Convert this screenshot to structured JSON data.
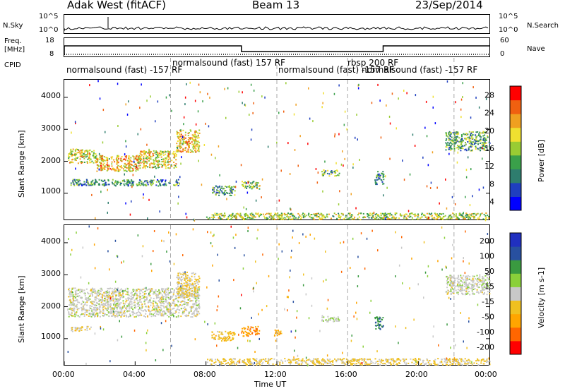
{
  "header": {
    "station": "Adak West (fitACF)",
    "beam": "Beam 13",
    "date": "23/Sep/2014"
  },
  "panels": {
    "nsky": {
      "label": "N.Sky",
      "right_label": "N.Search",
      "top_tick": "10^5",
      "bottom_tick": "10^0",
      "right_top_tick": "10^5",
      "right_bottom_tick": "10^0"
    },
    "freq": {
      "label_line1": "Freq.",
      "label_line2": "[MHz]",
      "right_label": "Nave",
      "ticks_left": [
        "18",
        "8"
      ],
      "ticks_right": [
        "60",
        "0"
      ]
    },
    "cpid": {
      "label": "CPID",
      "modes": [
        "normalsound (fast) -157 RF",
        "normalsound (fast) 157 RF",
        "normalsound (fast) -157 RF",
        "rbsp 200 RF",
        "normalsound (fast) -157 RF"
      ]
    }
  },
  "axes": {
    "x_ticks": [
      "00:00",
      "04:00",
      "08:00",
      "12:00",
      "16:00",
      "20:00",
      "00:00"
    ],
    "x_label": "Time UT",
    "y_label": "Slant Range [km]",
    "y_ticks": [
      "1000",
      "2000",
      "3000",
      "4000"
    ]
  },
  "chart_data": [
    {
      "type": "heatmap",
      "title": "",
      "xlabel": "",
      "ylabel": "Slant Range [km]",
      "xlim": [
        0,
        24
      ],
      "ylim": [
        180,
        4550
      ],
      "colorbar": {
        "label": "Power [dB]",
        "ticks": [
          "28",
          "24",
          "20",
          "16",
          "12",
          "8",
          "4"
        ],
        "range": [
          0,
          30
        ]
      },
      "regions": [
        {
          "t0": 0.2,
          "t1": 1.8,
          "r0": 1950,
          "r1": 2400,
          "value": 18
        },
        {
          "t0": 1.8,
          "t1": 4.2,
          "r0": 1700,
          "r1": 2200,
          "value": 20
        },
        {
          "t0": 4.2,
          "t1": 6.3,
          "r0": 1800,
          "r1": 2350,
          "value": 18
        },
        {
          "t0": 6.3,
          "t1": 7.6,
          "r0": 2300,
          "r1": 3000,
          "value": 20
        },
        {
          "t0": 0.3,
          "t1": 6.5,
          "r0": 1250,
          "r1": 1450,
          "value": 10
        },
        {
          "t0": 8.3,
          "t1": 9.6,
          "r0": 950,
          "r1": 1250,
          "value": 10
        },
        {
          "t0": 10.0,
          "t1": 11.0,
          "r0": 1150,
          "r1": 1400,
          "value": 14
        },
        {
          "t0": 14.5,
          "t1": 15.5,
          "r0": 1550,
          "r1": 1750,
          "value": 12
        },
        {
          "t0": 17.5,
          "t1": 18.0,
          "r0": 1300,
          "r1": 1700,
          "value": 8
        },
        {
          "t0": 21.5,
          "t1": 24.0,
          "r0": 2350,
          "r1": 2950,
          "value": 12
        },
        {
          "t0": 8.0,
          "t1": 24.0,
          "r0": 200,
          "r1": 400,
          "value": 16
        }
      ]
    },
    {
      "type": "heatmap",
      "title": "",
      "xlabel": "Time UT",
      "ylabel": "Slant Range [km]",
      "xlim": [
        0,
        24
      ],
      "ylim": [
        180,
        4550
      ],
      "colorbar": {
        "label": "Velocity [m s-1]",
        "ticks": [
          "200",
          "100",
          "50",
          "15",
          "-15",
          "-50",
          "-100",
          "-200"
        ],
        "range": [
          -250,
          250
        ]
      },
      "regions": [
        {
          "t0": 0.2,
          "t1": 7.6,
          "r0": 1700,
          "r1": 2600,
          "value": 0
        },
        {
          "t0": 6.3,
          "t1": 7.6,
          "r0": 2300,
          "r1": 3100,
          "value": -30
        },
        {
          "t0": 0.3,
          "t1": 1.5,
          "r0": 1250,
          "r1": 1400,
          "value": -20
        },
        {
          "t0": 8.3,
          "t1": 9.6,
          "r0": 950,
          "r1": 1250,
          "value": -60
        },
        {
          "t0": 10.0,
          "t1": 11.0,
          "r0": 1100,
          "r1": 1400,
          "value": -120
        },
        {
          "t0": 11.8,
          "t1": 12.3,
          "r0": 1100,
          "r1": 1300,
          "value": -110
        },
        {
          "t0": 14.5,
          "t1": 15.5,
          "r0": 1550,
          "r1": 1750,
          "value": 20
        },
        {
          "t0": 17.5,
          "t1": 18.0,
          "r0": 1300,
          "r1": 1700,
          "value": 120
        },
        {
          "t0": 21.5,
          "t1": 24.0,
          "r0": 2400,
          "r1": 3000,
          "value": 5
        },
        {
          "t0": 8.0,
          "t1": 24.0,
          "r0": 200,
          "r1": 400,
          "value": -40
        }
      ]
    }
  ],
  "colors": {
    "power_scale": [
      "#0000ff",
      "#1f3fbf",
      "#2e7d6e",
      "#3aa04a",
      "#99cc33",
      "#f0e030",
      "#f0a020",
      "#f06010",
      "#ff0000"
    ],
    "velocity_scale": [
      "#ff0000",
      "#ff6600",
      "#ffa500",
      "#f0c020",
      "#c8c8c8",
      "#8ad03a",
      "#3a9a40",
      "#2850a0",
      "#2030c0"
    ]
  }
}
